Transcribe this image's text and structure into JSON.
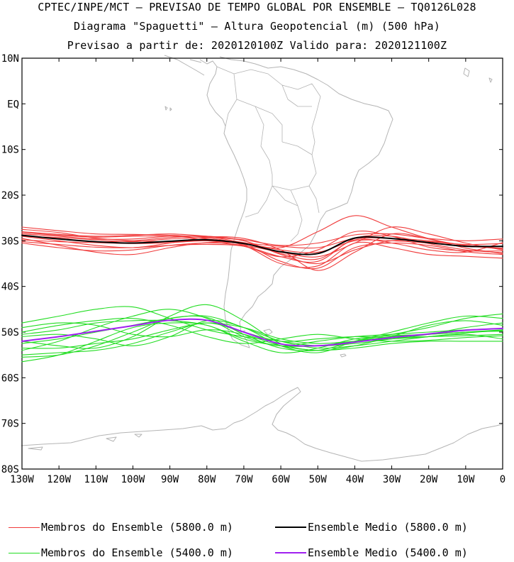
{
  "header": {
    "line1": "CPTEC/INPE/MCT — PREVISAO DE TEMPO GLOBAL POR ENSEMBLE — TQ0126L028",
    "line2": "Diagrama \"Spaguetti\" — Altura Geopotencial (m) (500 hPa)",
    "line3": "Previsao a partir de: 2020120100Z  Valido para: 2020121100Z"
  },
  "chart_data": {
    "type": "line",
    "title": "Diagrama Spaguetti - Altura Geopotencial 500 hPa",
    "x_axis": {
      "range": [
        -130,
        0
      ],
      "ticks": [
        -130,
        -120,
        -110,
        -100,
        -90,
        -80,
        -70,
        -60,
        -50,
        -40,
        -30,
        -20,
        -10,
        0
      ],
      "tick_labels": [
        "130W",
        "120W",
        "110W",
        "100W",
        "90W",
        "80W",
        "70W",
        "60W",
        "50W",
        "40W",
        "30W",
        "20W",
        "10W",
        "0"
      ]
    },
    "y_axis": {
      "range": [
        -80,
        10
      ],
      "ticks": [
        10,
        0,
        -10,
        -20,
        -30,
        -40,
        -50,
        -60,
        -70,
        -80
      ],
      "tick_labels": [
        "10N",
        "EQ",
        "10S",
        "20S",
        "30S",
        "40S",
        "50S",
        "60S",
        "70S",
        "80S"
      ]
    },
    "x": [
      -130,
      -120,
      -110,
      -100,
      -90,
      -80,
      -70,
      -60,
      -50,
      -40,
      -30,
      -20,
      -10,
      0
    ],
    "series": [
      {
        "group": "m5800",
        "color": "#f03c3c",
        "values": [
          -29.0,
          -29.3,
          -29.8,
          -30.2,
          -29.6,
          -29.4,
          -30.6,
          -32.0,
          -32.5,
          -30.0,
          -30.0,
          -30.5,
          -31.2,
          -31.6
        ]
      },
      {
        "group": "m5800",
        "color": "#f03c3c",
        "values": [
          -28.0,
          -28.6,
          -29.0,
          -28.8,
          -28.5,
          -29.0,
          -29.8,
          -31.0,
          -30.5,
          -28.7,
          -28.5,
          -29.5,
          -30.0,
          -29.6
        ]
      },
      {
        "group": "m5800",
        "color": "#f03c3c",
        "values": [
          -30.2,
          -30.8,
          -31.4,
          -31.5,
          -31.0,
          -30.8,
          -31.2,
          -33.5,
          -34.5,
          -29.5,
          -29.0,
          -30.6,
          -32.0,
          -32.6
        ]
      },
      {
        "group": "m5800",
        "color": "#f03c3c",
        "values": [
          -27.0,
          -27.8,
          -28.5,
          -28.6,
          -28.8,
          -29.2,
          -30.0,
          -33.0,
          -35.0,
          -32.0,
          -30.0,
          -30.2,
          -30.8,
          -30.6
        ]
      },
      {
        "group": "m5800",
        "color": "#f03c3c",
        "values": [
          -29.5,
          -31.0,
          -32.5,
          -33.0,
          -31.5,
          -30.4,
          -30.8,
          -34.5,
          -36.0,
          -31.5,
          -30.5,
          -31.0,
          -32.4,
          -33.0
        ]
      },
      {
        "group": "m5800",
        "color": "#f03c3c",
        "values": [
          -28.5,
          -29.0,
          -29.6,
          -29.6,
          -29.0,
          -29.1,
          -30.4,
          -31.5,
          -28.0,
          -24.5,
          -27.0,
          -29.5,
          -31.0,
          -31.2
        ]
      },
      {
        "group": "m5800",
        "color": "#f03c3c",
        "values": [
          -30.5,
          -31.5,
          -32.2,
          -32.0,
          -31.0,
          -30.5,
          -31.0,
          -32.5,
          -33.5,
          -30.5,
          -27.0,
          -28.5,
          -30.5,
          -32.0
        ]
      },
      {
        "group": "m5800",
        "color": "#f03c3c",
        "values": [
          -28.2,
          -28.8,
          -29.2,
          -29.0,
          -29.0,
          -29.6,
          -31.0,
          -35.0,
          -35.5,
          -30.5,
          -31.5,
          -33.0,
          -33.4,
          -33.8
        ]
      },
      {
        "group": "m5800",
        "color": "#f03c3c",
        "values": [
          -29.8,
          -30.2,
          -30.4,
          -30.6,
          -30.4,
          -30.0,
          -30.5,
          -31.2,
          -31.5,
          -29.5,
          -29.5,
          -30.0,
          -31.0,
          -31.8
        ]
      },
      {
        "group": "m5800",
        "color": "#f03c3c",
        "values": [
          -27.5,
          -28.2,
          -29.4,
          -30.0,
          -30.2,
          -30.0,
          -31.2,
          -33.5,
          -32.0,
          -28.0,
          -29.0,
          -31.4,
          -32.2,
          -32.2
        ]
      },
      {
        "group": "m5800",
        "color": "#f03c3c",
        "values": [
          -29.0,
          -30.0,
          -31.0,
          -31.5,
          -30.5,
          -29.2,
          -29.5,
          -32.0,
          -36.5,
          -32.5,
          -28.5,
          -29.6,
          -31.6,
          -32.8
        ]
      },
      {
        "group": "m5800",
        "color": "#f03c3c",
        "values": [
          -28.8,
          -29.5,
          -30.2,
          -30.0,
          -29.3,
          -29.0,
          -30.0,
          -32.8,
          -34.0,
          -29.8,
          -30.5,
          -32.0,
          -32.5,
          -30.4
        ]
      },
      {
        "group": "mean5800",
        "color": "#000000",
        "values": [
          -28.8,
          -29.6,
          -30.2,
          -30.5,
          -30.1,
          -29.8,
          -30.6,
          -32.4,
          -32.8,
          -29.4,
          -29.5,
          -30.4,
          -31.2,
          -31.2
        ]
      },
      {
        "group": "m5400",
        "color": "#22dd22",
        "values": [
          -48.0,
          -46.5,
          -45.0,
          -44.5,
          -47.0,
          -49.5,
          -51.0,
          -52.0,
          -53.0,
          -52.5,
          -51.5,
          -50.5,
          -49.0,
          -48.0
        ]
      },
      {
        "group": "m5400",
        "color": "#22dd22",
        "values": [
          -52.5,
          -51.5,
          -50.0,
          -48.5,
          -47.0,
          -46.5,
          -49.0,
          -52.0,
          -53.5,
          -53.0,
          -52.0,
          -51.0,
          -50.2,
          -49.6
        ]
      },
      {
        "group": "m5400",
        "color": "#22dd22",
        "values": [
          -55.5,
          -55.0,
          -53.0,
          -50.0,
          -47.0,
          -46.8,
          -50.5,
          -53.5,
          -54.0,
          -52.0,
          -50.5,
          -49.0,
          -47.0,
          -46.0
        ]
      },
      {
        "group": "m5400",
        "color": "#22dd22",
        "values": [
          -50.0,
          -48.5,
          -47.5,
          -47.0,
          -48.5,
          -51.0,
          -52.5,
          -51.5,
          -50.5,
          -51.5,
          -52.0,
          -51.8,
          -51.2,
          -50.8
        ]
      },
      {
        "group": "m5400",
        "color": "#22dd22",
        "values": [
          -54.0,
          -52.0,
          -49.0,
          -46.5,
          -45.0,
          -47.0,
          -51.0,
          -53.0,
          -52.0,
          -51.0,
          -50.5,
          -50.0,
          -49.5,
          -49.2
        ]
      },
      {
        "group": "m5400",
        "color": "#22dd22",
        "values": [
          -51.0,
          -50.5,
          -51.5,
          -53.0,
          -51.0,
          -47.5,
          -49.0,
          -53.0,
          -54.5,
          -52.0,
          -50.0,
          -48.0,
          -46.5,
          -47.0
        ]
      },
      {
        "group": "m5400",
        "color": "#22dd22",
        "values": [
          -53.5,
          -53.5,
          -52.5,
          -51.5,
          -49.5,
          -48.0,
          -49.0,
          -51.5,
          -52.5,
          -52.0,
          -51.5,
          -51.0,
          -50.5,
          -51.5
        ]
      },
      {
        "group": "m5400",
        "color": "#22dd22",
        "values": [
          -49.0,
          -48.0,
          -48.5,
          -50.5,
          -51.0,
          -49.5,
          -50.5,
          -53.0,
          -54.0,
          -53.5,
          -52.5,
          -52.0,
          -52.0,
          -52.0
        ]
      },
      {
        "group": "m5400",
        "color": "#22dd22",
        "values": [
          -56.5,
          -55.0,
          -52.0,
          -49.0,
          -48.0,
          -48.5,
          -52.0,
          -54.5,
          -53.5,
          -51.5,
          -50.8,
          -50.5,
          -50.0,
          -49.8
        ]
      },
      {
        "group": "m5400",
        "color": "#22dd22",
        "values": [
          -52.0,
          -53.0,
          -53.5,
          -51.0,
          -46.5,
          -44.0,
          -47.5,
          -52.5,
          -54.0,
          -53.0,
          -51.0,
          -48.5,
          -47.5,
          -48.5
        ]
      },
      {
        "group": "m5400",
        "color": "#22dd22",
        "values": [
          -50.5,
          -49.5,
          -48.0,
          -47.5,
          -47.5,
          -48.5,
          -51.5,
          -53.0,
          -53.0,
          -52.0,
          -51.0,
          -50.5,
          -50.0,
          -49.5
        ]
      },
      {
        "group": "m5400",
        "color": "#22dd22",
        "values": [
          -55.0,
          -54.5,
          -54.0,
          -52.5,
          -50.0,
          -48.0,
          -50.0,
          -52.0,
          -51.5,
          -51.0,
          -51.2,
          -51.0,
          -50.8,
          -50.5
        ]
      },
      {
        "group": "mean5400",
        "color": "#a020f0",
        "values": [
          -52.0,
          -51.0,
          -49.8,
          -48.6,
          -47.4,
          -47.4,
          -50.0,
          -52.6,
          -53.0,
          -52.2,
          -51.2,
          -50.4,
          -49.6,
          -49.2
        ]
      }
    ],
    "legend": [
      {
        "label": "Membros do Ensemble (5800.0 m)",
        "color": "#f03c3c",
        "line_style": "thin"
      },
      {
        "label": "Ensemble Medio (5800.0 m)",
        "color": "#000000",
        "line_style": "thick"
      },
      {
        "label": "Membros do Ensemble (5400.0 m)",
        "color": "#22dd22",
        "line_style": "thin"
      },
      {
        "label": "Ensemble Medio (5400.0 m)",
        "color": "#a020f0",
        "line_style": "thick"
      }
    ],
    "legend_position": "bottom"
  }
}
